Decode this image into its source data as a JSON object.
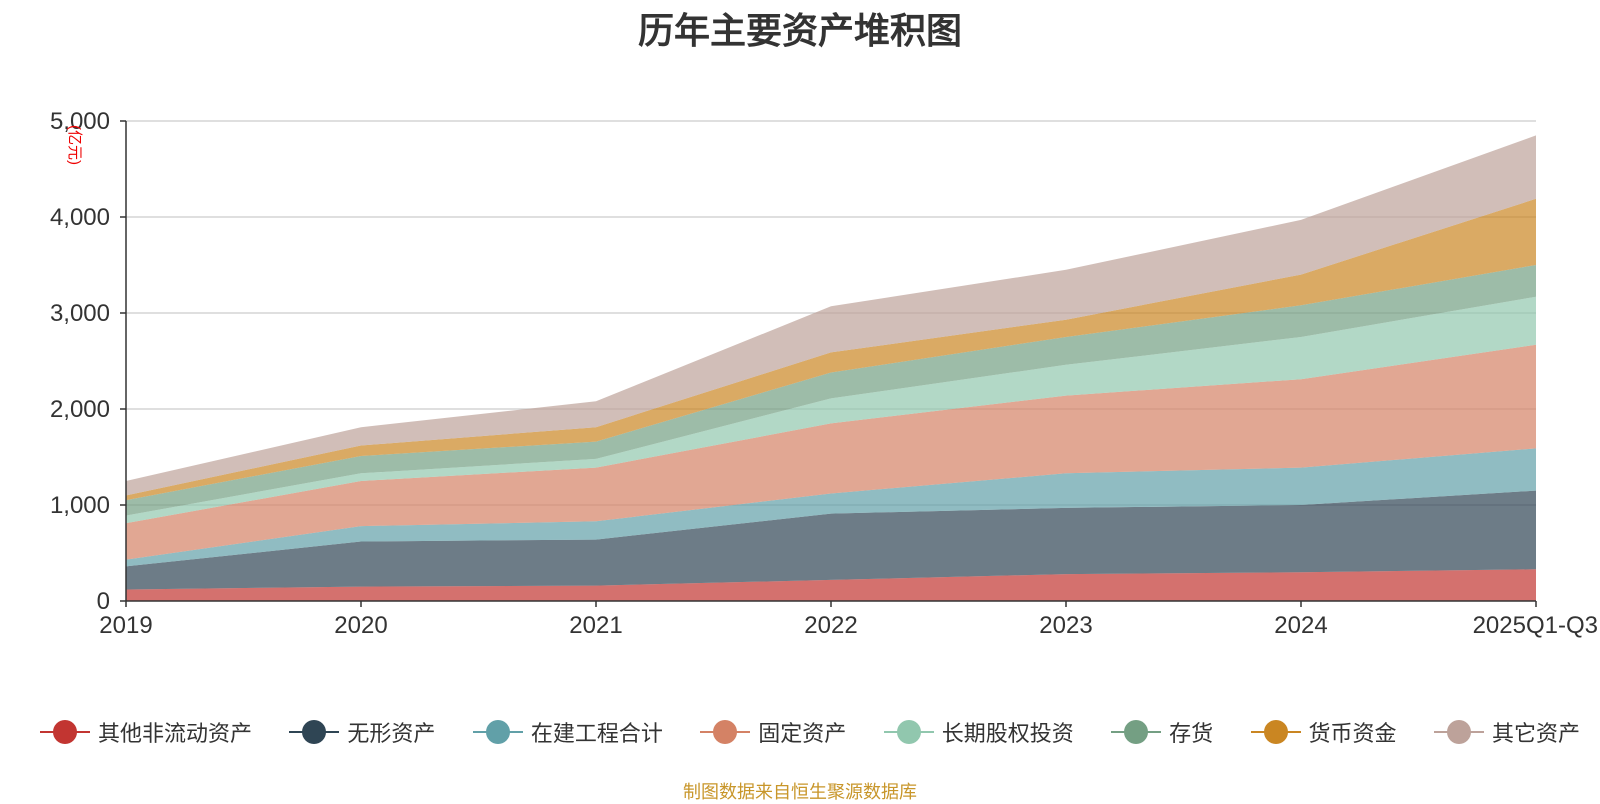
{
  "chart_data": {
    "type": "area",
    "stacked": true,
    "title": "历年主要资产堆积图",
    "ylabel": "(亿元)",
    "xlabel": "",
    "ylim": [
      0,
      5000
    ],
    "yticks": [
      0,
      1000,
      2000,
      3000,
      4000,
      5000
    ],
    "ytick_labels": [
      "0",
      "1,000",
      "2,000",
      "3,000",
      "4,000",
      "5,000"
    ],
    "categories": [
      "2019",
      "2020",
      "2021",
      "2022",
      "2023",
      "2024",
      "2025Q1-Q3"
    ],
    "grid": true,
    "legend_position": "bottom",
    "series": [
      {
        "name": "其他非流动资产",
        "color": "#c23531",
        "values": [
          120,
          150,
          160,
          220,
          280,
          300,
          330
        ]
      },
      {
        "name": "无形资产",
        "color": "#2f4554",
        "values": [
          240,
          470,
          480,
          690,
          690,
          700,
          820
        ]
      },
      {
        "name": "在建工程合计",
        "color": "#61a0a8",
        "values": [
          70,
          160,
          190,
          210,
          360,
          390,
          440
        ]
      },
      {
        "name": "固定资产",
        "color": "#d48265",
        "values": [
          380,
          470,
          560,
          730,
          810,
          920,
          1080
        ]
      },
      {
        "name": "长期股权投资",
        "color": "#91c7ae",
        "values": [
          80,
          80,
          90,
          260,
          320,
          440,
          500
        ]
      },
      {
        "name": "存货",
        "color": "#749f83",
        "values": [
          160,
          180,
          180,
          270,
          290,
          330,
          330
        ]
      },
      {
        "name": "货币资金",
        "color": "#ca8622",
        "values": [
          50,
          110,
          150,
          210,
          180,
          320,
          690
        ]
      },
      {
        "name": "其它资产",
        "color": "#bda29a",
        "values": [
          150,
          190,
          270,
          480,
          520,
          570,
          660
        ]
      }
    ]
  },
  "footer": {
    "source": "制图数据来自恒生聚源数据库"
  }
}
